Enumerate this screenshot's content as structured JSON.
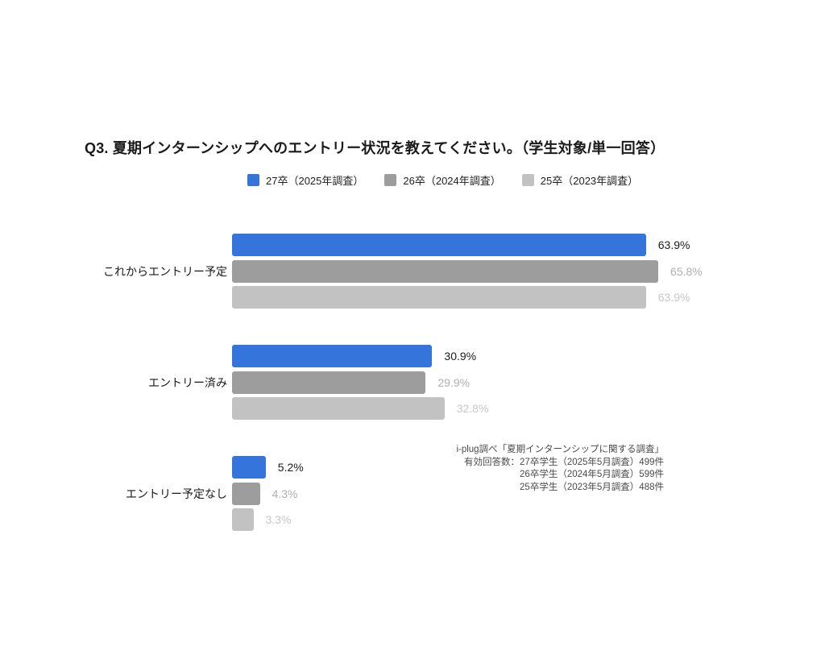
{
  "title": "Q3. 夏期インターンシップへのエントリー状況を教えてください。（学生対象/単一回答）",
  "chart_data": {
    "type": "bar",
    "orientation": "horizontal",
    "title": "Q3. 夏期インターンシップへのエントリー状況を教えてください。（学生対象/単一回答）",
    "categories": [
      "これからエントリー予定",
      "エントリー済み",
      "エントリー予定なし"
    ],
    "series": [
      {
        "name": "27卒（2025年調査）",
        "color": "#3474DB",
        "label_color": "#1a1a1a",
        "values": [
          63.9,
          30.9,
          5.2
        ]
      },
      {
        "name": "26卒（2024年調査）",
        "color": "#9D9D9D",
        "label_color": "#AFAFAF",
        "values": [
          65.8,
          29.9,
          4.3
        ]
      },
      {
        "name": "25卒（2023年調査）",
        "color": "#C2C2C2",
        "label_color": "#C6C6C6",
        "values": [
          63.9,
          32.8,
          3.3
        ]
      }
    ],
    "value_suffix": "%",
    "xlim": [
      0,
      70
    ],
    "grid": false,
    "legend_position": "top-center"
  },
  "footnote": {
    "lines": [
      "i-plug調べ「夏期インターンシップに関する調査」",
      "有効回答数：27卒学生（2025年5月調査）499件",
      "26卒学生（2024年5月調査）599件",
      "25卒学生（2023年5月調査）488件"
    ]
  }
}
